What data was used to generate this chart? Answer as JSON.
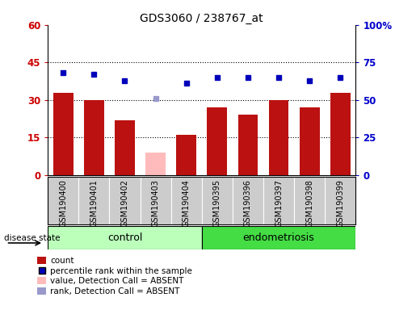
{
  "title": "GDS3060 / 238767_at",
  "categories": [
    "GSM190400",
    "GSM190401",
    "GSM190402",
    "GSM190403",
    "GSM190404",
    "GSM190395",
    "GSM190396",
    "GSM190397",
    "GSM190398",
    "GSM190399"
  ],
  "bar_values": [
    33,
    30,
    22,
    9,
    16,
    27,
    24,
    30,
    27,
    33
  ],
  "bar_colors": [
    "#bb1111",
    "#bb1111",
    "#bb1111",
    "#ffbbbb",
    "#bb1111",
    "#bb1111",
    "#bb1111",
    "#bb1111",
    "#bb1111",
    "#bb1111"
  ],
  "percentile_values": [
    68,
    67,
    63,
    51,
    61,
    65,
    65,
    65,
    63,
    65
  ],
  "percentile_colors": [
    "#0000bb",
    "#0000bb",
    "#0000bb",
    "#9999cc",
    "#0000bb",
    "#0000bb",
    "#0000bb",
    "#0000bb",
    "#0000bb",
    "#0000bb"
  ],
  "left_ylim": [
    0,
    60
  ],
  "left_yticks": [
    0,
    15,
    30,
    45,
    60
  ],
  "left_yticklabels": [
    "0",
    "15",
    "30",
    "45",
    "60"
  ],
  "right_yticks": [
    0,
    25,
    50,
    75,
    100
  ],
  "right_yticklabels": [
    "0",
    "25",
    "50",
    "75",
    "100%"
  ],
  "left_tick_color": "#cc0000",
  "right_tick_color": "#0000cc",
  "group_labels": [
    "control",
    "endometriosis"
  ],
  "control_color": "#bbffbb",
  "endometriosis_color": "#44dd44",
  "background_color": "#cccccc",
  "plot_bg_color": "#ffffff",
  "disease_state_label": "disease state"
}
